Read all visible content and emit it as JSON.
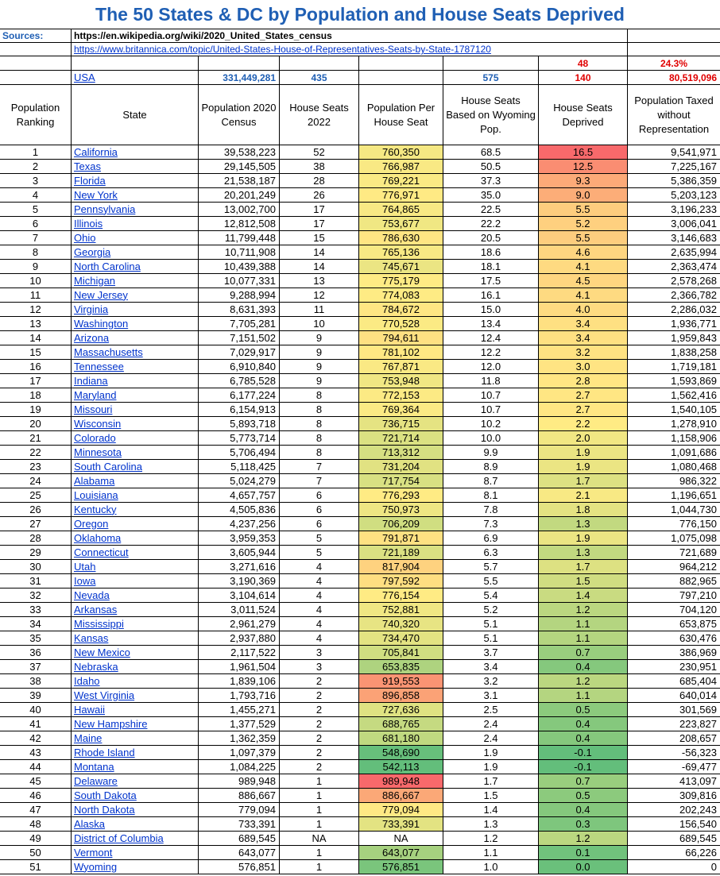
{
  "title": "The 50 States & DC by Population and House Seats Deprived",
  "sources": {
    "label": "Sources:",
    "link1": "https://en.wikipedia.org/wiki/2020_United_States_census",
    "link2": "https://www.britannica.com/topic/United-States-House-of-Representatives-Seats-by-State-1787120"
  },
  "totals_extra": {
    "deprived_count": "48",
    "percent": "24.3%"
  },
  "usa": {
    "name": "USA",
    "population": "331,449,281",
    "seats": "435",
    "wyoming_seats": "575",
    "deprived": "140",
    "taxed": "80,519,096"
  },
  "headers": [
    "Population Ranking",
    "State",
    "Population 2020 Census",
    "House Seats 2022",
    "Population Per House Seat",
    "House Seats Based on Wyoming Pop.",
    "House Seats Deprived",
    "Population Taxed without Representation"
  ],
  "colors": {
    "title": "#1f5fb4",
    "link": "#0033cc",
    "red": "#e00000"
  },
  "rows": [
    {
      "rank": "1",
      "state": "California",
      "pop": "39,538,223",
      "seats": "52",
      "per": "760,350",
      "wy": "68.5",
      "dep": "16.5",
      "taxed": "9,541,971"
    },
    {
      "rank": "2",
      "state": "Texas",
      "pop": "29,145,505",
      "seats": "38",
      "per": "766,987",
      "wy": "50.5",
      "dep": "12.5",
      "taxed": "7,225,167"
    },
    {
      "rank": "3",
      "state": "Florida",
      "pop": "21,538,187",
      "seats": "28",
      "per": "769,221",
      "wy": "37.3",
      "dep": "9.3",
      "taxed": "5,386,359"
    },
    {
      "rank": "4",
      "state": "New York",
      "pop": "20,201,249",
      "seats": "26",
      "per": "776,971",
      "wy": "35.0",
      "dep": "9.0",
      "taxed": "5,203,123"
    },
    {
      "rank": "5",
      "state": "Pennsylvania",
      "pop": "13,002,700",
      "seats": "17",
      "per": "764,865",
      "wy": "22.5",
      "dep": "5.5",
      "taxed": "3,196,233"
    },
    {
      "rank": "6",
      "state": "Illinois",
      "pop": "12,812,508",
      "seats": "17",
      "per": "753,677",
      "wy": "22.2",
      "dep": "5.2",
      "taxed": "3,006,041"
    },
    {
      "rank": "7",
      "state": "Ohio",
      "pop": "11,799,448",
      "seats": "15",
      "per": "786,630",
      "wy": "20.5",
      "dep": "5.5",
      "taxed": "3,146,683"
    },
    {
      "rank": "8",
      "state": "Georgia",
      "pop": "10,711,908",
      "seats": "14",
      "per": "765,136",
      "wy": "18.6",
      "dep": "4.6",
      "taxed": "2,635,994"
    },
    {
      "rank": "9",
      "state": "North Carolina",
      "pop": "10,439,388",
      "seats": "14",
      "per": "745,671",
      "wy": "18.1",
      "dep": "4.1",
      "taxed": "2,363,474"
    },
    {
      "rank": "10",
      "state": "Michigan",
      "pop": "10,077,331",
      "seats": "13",
      "per": "775,179",
      "wy": "17.5",
      "dep": "4.5",
      "taxed": "2,578,268"
    },
    {
      "rank": "11",
      "state": "New Jersey",
      "pop": "9,288,994",
      "seats": "12",
      "per": "774,083",
      "wy": "16.1",
      "dep": "4.1",
      "taxed": "2,366,782"
    },
    {
      "rank": "12",
      "state": "Virginia",
      "pop": "8,631,393",
      "seats": "11",
      "per": "784,672",
      "wy": "15.0",
      "dep": "4.0",
      "taxed": "2,286,032"
    },
    {
      "rank": "13",
      "state": "Washington",
      "pop": "7,705,281",
      "seats": "10",
      "per": "770,528",
      "wy": "13.4",
      "dep": "3.4",
      "taxed": "1,936,771"
    },
    {
      "rank": "14",
      "state": "Arizona",
      "pop": "7,151,502",
      "seats": "9",
      "per": "794,611",
      "wy": "12.4",
      "dep": "3.4",
      "taxed": "1,959,843"
    },
    {
      "rank": "15",
      "state": "Massachusetts",
      "pop": "7,029,917",
      "seats": "9",
      "per": "781,102",
      "wy": "12.2",
      "dep": "3.2",
      "taxed": "1,838,258"
    },
    {
      "rank": "16",
      "state": "Tennessee",
      "pop": "6,910,840",
      "seats": "9",
      "per": "767,871",
      "wy": "12.0",
      "dep": "3.0",
      "taxed": "1,719,181"
    },
    {
      "rank": "17",
      "state": "Indiana",
      "pop": "6,785,528",
      "seats": "9",
      "per": "753,948",
      "wy": "11.8",
      "dep": "2.8",
      "taxed": "1,593,869"
    },
    {
      "rank": "18",
      "state": "Maryland",
      "pop": "6,177,224",
      "seats": "8",
      "per": "772,153",
      "wy": "10.7",
      "dep": "2.7",
      "taxed": "1,562,416"
    },
    {
      "rank": "19",
      "state": "Missouri",
      "pop": "6,154,913",
      "seats": "8",
      "per": "769,364",
      "wy": "10.7",
      "dep": "2.7",
      "taxed": "1,540,105"
    },
    {
      "rank": "20",
      "state": "Wisconsin",
      "pop": "5,893,718",
      "seats": "8",
      "per": "736,715",
      "wy": "10.2",
      "dep": "2.2",
      "taxed": "1,278,910"
    },
    {
      "rank": "21",
      "state": "Colorado",
      "pop": "5,773,714",
      "seats": "8",
      "per": "721,714",
      "wy": "10.0",
      "dep": "2.0",
      "taxed": "1,158,906"
    },
    {
      "rank": "22",
      "state": "Minnesota",
      "pop": "5,706,494",
      "seats": "8",
      "per": "713,312",
      "wy": "9.9",
      "dep": "1.9",
      "taxed": "1,091,686"
    },
    {
      "rank": "23",
      "state": "South Carolina",
      "pop": "5,118,425",
      "seats": "7",
      "per": "731,204",
      "wy": "8.9",
      "dep": "1.9",
      "taxed": "1,080,468"
    },
    {
      "rank": "24",
      "state": "Alabama",
      "pop": "5,024,279",
      "seats": "7",
      "per": "717,754",
      "wy": "8.7",
      "dep": "1.7",
      "taxed": "986,322"
    },
    {
      "rank": "25",
      "state": "Louisiana",
      "pop": "4,657,757",
      "seats": "6",
      "per": "776,293",
      "wy": "8.1",
      "dep": "2.1",
      "taxed": "1,196,651"
    },
    {
      "rank": "26",
      "state": "Kentucky",
      "pop": "4,505,836",
      "seats": "6",
      "per": "750,973",
      "wy": "7.8",
      "dep": "1.8",
      "taxed": "1,044,730"
    },
    {
      "rank": "27",
      "state": "Oregon",
      "pop": "4,237,256",
      "seats": "6",
      "per": "706,209",
      "wy": "7.3",
      "dep": "1.3",
      "taxed": "776,150"
    },
    {
      "rank": "28",
      "state": "Oklahoma",
      "pop": "3,959,353",
      "seats": "5",
      "per": "791,871",
      "wy": "6.9",
      "dep": "1.9",
      "taxed": "1,075,098"
    },
    {
      "rank": "29",
      "state": "Connecticut",
      "pop": "3,605,944",
      "seats": "5",
      "per": "721,189",
      "wy": "6.3",
      "dep": "1.3",
      "taxed": "721,689"
    },
    {
      "rank": "30",
      "state": "Utah",
      "pop": "3,271,616",
      "seats": "4",
      "per": "817,904",
      "wy": "5.7",
      "dep": "1.7",
      "taxed": "964,212"
    },
    {
      "rank": "31",
      "state": "Iowa",
      "pop": "3,190,369",
      "seats": "4",
      "per": "797,592",
      "wy": "5.5",
      "dep": "1.5",
      "taxed": "882,965"
    },
    {
      "rank": "32",
      "state": "Nevada",
      "pop": "3,104,614",
      "seats": "4",
      "per": "776,154",
      "wy": "5.4",
      "dep": "1.4",
      "taxed": "797,210"
    },
    {
      "rank": "33",
      "state": "Arkansas",
      "pop": "3,011,524",
      "seats": "4",
      "per": "752,881",
      "wy": "5.2",
      "dep": "1.2",
      "taxed": "704,120"
    },
    {
      "rank": "34",
      "state": "Mississippi",
      "pop": "2,961,279",
      "seats": "4",
      "per": "740,320",
      "wy": "5.1",
      "dep": "1.1",
      "taxed": "653,875"
    },
    {
      "rank": "35",
      "state": "Kansas",
      "pop": "2,937,880",
      "seats": "4",
      "per": "734,470",
      "wy": "5.1",
      "dep": "1.1",
      "taxed": "630,476"
    },
    {
      "rank": "36",
      "state": "New Mexico",
      "pop": "2,117,522",
      "seats": "3",
      "per": "705,841",
      "wy": "3.7",
      "dep": "0.7",
      "taxed": "386,969"
    },
    {
      "rank": "37",
      "state": "Nebraska",
      "pop": "1,961,504",
      "seats": "3",
      "per": "653,835",
      "wy": "3.4",
      "dep": "0.4",
      "taxed": "230,951"
    },
    {
      "rank": "38",
      "state": "Idaho",
      "pop": "1,839,106",
      "seats": "2",
      "per": "919,553",
      "wy": "3.2",
      "dep": "1.2",
      "taxed": "685,404"
    },
    {
      "rank": "39",
      "state": "West Virginia",
      "pop": "1,793,716",
      "seats": "2",
      "per": "896,858",
      "wy": "3.1",
      "dep": "1.1",
      "taxed": "640,014"
    },
    {
      "rank": "40",
      "state": "Hawaii",
      "pop": "1,455,271",
      "seats": "2",
      "per": "727,636",
      "wy": "2.5",
      "dep": "0.5",
      "taxed": "301,569"
    },
    {
      "rank": "41",
      "state": "New Hampshire",
      "pop": "1,377,529",
      "seats": "2",
      "per": "688,765",
      "wy": "2.4",
      "dep": "0.4",
      "taxed": "223,827"
    },
    {
      "rank": "42",
      "state": "Maine",
      "pop": "1,362,359",
      "seats": "2",
      "per": "681,180",
      "wy": "2.4",
      "dep": "0.4",
      "taxed": "208,657"
    },
    {
      "rank": "43",
      "state": "Rhode Island",
      "pop": "1,097,379",
      "seats": "2",
      "per": "548,690",
      "wy": "1.9",
      "dep": "-0.1",
      "taxed": "-56,323"
    },
    {
      "rank": "44",
      "state": "Montana",
      "pop": "1,084,225",
      "seats": "2",
      "per": "542,113",
      "wy": "1.9",
      "dep": "-0.1",
      "taxed": "-69,477"
    },
    {
      "rank": "45",
      "state": "Delaware",
      "pop": "989,948",
      "seats": "1",
      "per": "989,948",
      "wy": "1.7",
      "dep": "0.7",
      "taxed": "413,097"
    },
    {
      "rank": "46",
      "state": "South Dakota",
      "pop": "886,667",
      "seats": "1",
      "per": "886,667",
      "wy": "1.5",
      "dep": "0.5",
      "taxed": "309,816"
    },
    {
      "rank": "47",
      "state": "North Dakota",
      "pop": "779,094",
      "seats": "1",
      "per": "779,094",
      "wy": "1.4",
      "dep": "0.4",
      "taxed": "202,243"
    },
    {
      "rank": "48",
      "state": "Alaska",
      "pop": "733,391",
      "seats": "1",
      "per": "733,391",
      "wy": "1.3",
      "dep": "0.3",
      "taxed": "156,540"
    },
    {
      "rank": "49",
      "state": "District of Columbia",
      "pop": "689,545",
      "seats": "NA",
      "per": "NA",
      "wy": "1.2",
      "dep": "1.2",
      "taxed": "689,545"
    },
    {
      "rank": "50",
      "state": "Vermont",
      "pop": "643,077",
      "seats": "1",
      "per": "643,077",
      "wy": "1.1",
      "dep": "0.1",
      "taxed": "66,226"
    },
    {
      "rank": "51",
      "state": "Wyoming",
      "pop": "576,851",
      "seats": "1",
      "per": "576,851",
      "wy": "1.0",
      "dep": "0.0",
      "taxed": "0"
    }
  ]
}
